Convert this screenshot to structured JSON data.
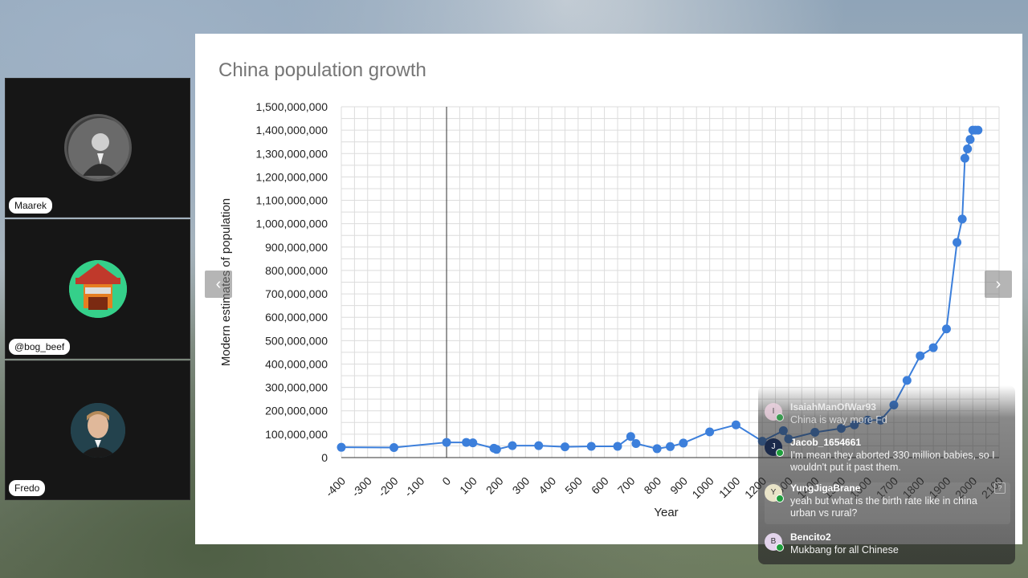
{
  "participants": [
    {
      "name": "Maarek"
    },
    {
      "name": "@bog_beef"
    },
    {
      "name": "Fredo"
    }
  ],
  "slide": {
    "prev_icon": "chevron-left-icon",
    "next_icon": "chevron-right-icon"
  },
  "chart_data": {
    "type": "line",
    "title": "China population growth",
    "xlabel": "Year",
    "ylabel": "Modern estimates of population",
    "xlim": [
      -400,
      2100
    ],
    "ylim": [
      0,
      1500000000
    ],
    "x_ticks": [
      "-400",
      "-300",
      "-200",
      "-100",
      "0",
      "100",
      "200",
      "300",
      "400",
      "500",
      "600",
      "700",
      "800",
      "900",
      "1000",
      "1100",
      "1200",
      "1300",
      "1400",
      "1500",
      "1600",
      "1700",
      "1800",
      "1900",
      "2000",
      "2100"
    ],
    "y_ticks": [
      "0",
      "100,000,000",
      "200,000,000",
      "300,000,000",
      "400,000,000",
      "500,000,000",
      "600,000,000",
      "700,000,000",
      "800,000,000",
      "900,000,000",
      "1,000,000,000",
      "1,100,000,000",
      "1,200,000,000",
      "1,300,000,000",
      "1,400,000,000",
      "1,500,000,000"
    ],
    "grid": true,
    "color": "#3c7fdb",
    "series": [
      {
        "name": "",
        "x": [
          -400,
          -200,
          0,
          75,
          100,
          180,
          190,
          250,
          350,
          450,
          550,
          650,
          700,
          720,
          800,
          850,
          900,
          1000,
          1100,
          1200,
          1280,
          1300,
          1400,
          1500,
          1550,
          1600,
          1650,
          1700,
          1750,
          1800,
          1850,
          1900,
          1940,
          1960,
          1970,
          1980,
          1990,
          2000,
          2010,
          2020
        ],
        "y": [
          44000000,
          43000000,
          65000000,
          65000000,
          63000000,
          40000000,
          35000000,
          51000000,
          51000000,
          46000000,
          48000000,
          48000000,
          90000000,
          60000000,
          38000000,
          47000000,
          62000000,
          110000000,
          140000000,
          70000000,
          115000000,
          80000000,
          108000000,
          125000000,
          140000000,
          160000000,
          160000000,
          225000000,
          330000000,
          435000000,
          470000000,
          550000000,
          920000000,
          1020000000,
          1280000000,
          1320000000,
          1360000000,
          1400000000,
          1400000000,
          1400000000
        ]
      }
    ]
  },
  "chat": {
    "messages": [
      {
        "user": "IsaiahManOfWar93",
        "initial": "I",
        "text": "China is way more Fd",
        "avatar_color": "#f4d6e6"
      },
      {
        "user": "Jacob_1654661",
        "initial": "J",
        "text": "I'm mean they aborted 330 million babies, so I wouldn't put it past them.",
        "avatar_color": "#1b2a4a"
      },
      {
        "user": "YungJigaBrane",
        "initial": "Y",
        "text": "yeah but what is the birth rate like in china urban vs rural?",
        "avatar_color": "#e9e4c8"
      },
      {
        "user": "Bencito2",
        "initial": "B",
        "text": "Mukbang for all Chinese",
        "avatar_color": "#e3d4ec"
      }
    ],
    "message_menu_icon": "more-icon"
  }
}
